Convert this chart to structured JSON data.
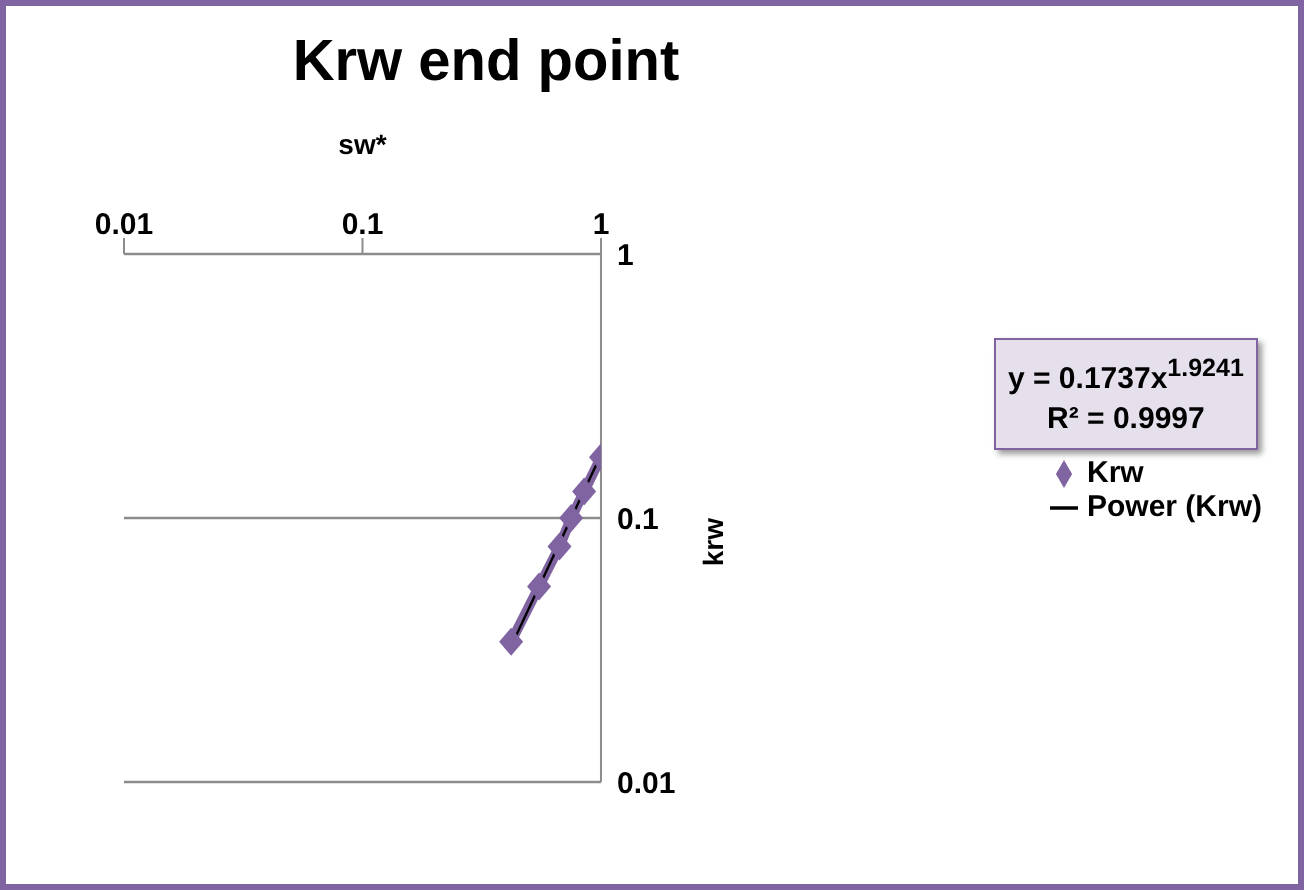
{
  "chart_data": {
    "type": "line",
    "title": "Krw end point",
    "xlabel": "sw*",
    "ylabel": "krw",
    "log": "xy",
    "grid": "y",
    "legend": "right",
    "marker": "diamond",
    "xlim": [
      0.01,
      1
    ],
    "xticks": [
      0.01,
      0.1,
      1
    ],
    "ylim": [
      0.01,
      1
    ],
    "yticks": [
      0.01,
      0.1,
      1
    ],
    "annotations": [
      "y = 0.1737x$^{1.9241}$",
      "R² = 0.9997"
    ],
    "series": [
      {
        "name": "Krw",
        "color": "#8064a2",
        "x": [
          0.42,
          0.55,
          0.67,
          0.75,
          0.85,
          1.0
        ],
        "values": [
          0.034,
          0.055,
          0.078,
          0.1,
          0.126,
          0.17
        ]
      },
      {
        "name": "Power (Krw)",
        "type": "line",
        "marker": "none",
        "color": "#000000",
        "x": [
          0.42,
          1.0
        ],
        "values": [
          0.0327,
          0.1737
        ]
      }
    ]
  }
}
